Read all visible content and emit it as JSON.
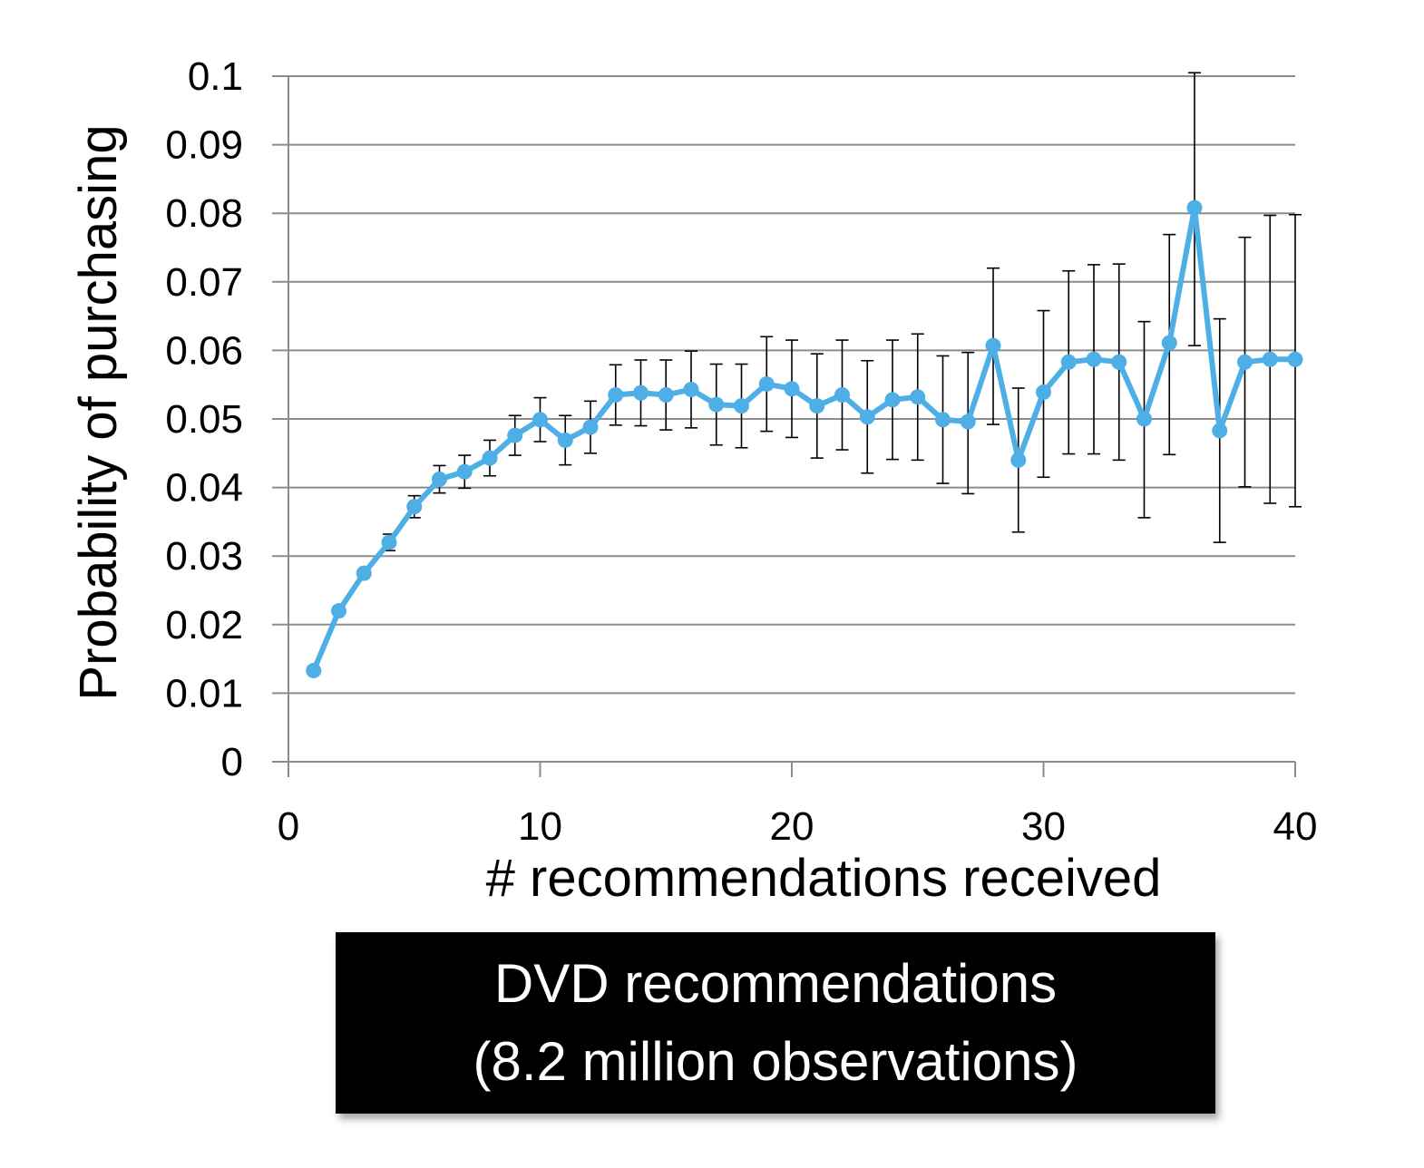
{
  "caption": {
    "line1": "DVD recommendations",
    "line2": "(8.2 million observations)"
  },
  "chart_data": {
    "type": "line",
    "title": "",
    "xlabel": "# recommendations received",
    "ylabel": "Probability of purchasing",
    "xlim": [
      0,
      40
    ],
    "ylim": [
      0,
      0.1
    ],
    "xticks": [
      0,
      10,
      20,
      30,
      40
    ],
    "xtick_labels": [
      "0",
      "10",
      "20",
      "30",
      "40"
    ],
    "yticks": [
      0,
      0.01,
      0.02,
      0.03,
      0.04,
      0.05,
      0.06,
      0.07,
      0.08,
      0.09,
      0.1
    ],
    "ytick_labels": [
      "0",
      "0.01",
      "0.02",
      "0.03",
      "0.04",
      "0.05",
      "0.06",
      "0.07",
      "0.08",
      "0.09",
      "0.1"
    ],
    "grid": "horizontal",
    "legend": "none",
    "series_color": "#4eaee6",
    "error_bar_color": "#000000",
    "series": [
      {
        "x": [
          1,
          2,
          3,
          4,
          5,
          6,
          7,
          8,
          9,
          10,
          11,
          12,
          13,
          14,
          15,
          16,
          17,
          18,
          19,
          20,
          21,
          22,
          23,
          24,
          25,
          26,
          27,
          28,
          29,
          30,
          31,
          32,
          33,
          34,
          35,
          36,
          37,
          38,
          39,
          40
        ],
        "values": [
          0.0133,
          0.022,
          0.0275,
          0.032,
          0.0372,
          0.0412,
          0.0423,
          0.0443,
          0.0476,
          0.0499,
          0.0469,
          0.0488,
          0.0535,
          0.0538,
          0.0535,
          0.0543,
          0.0521,
          0.0519,
          0.0551,
          0.0544,
          0.0519,
          0.0535,
          0.0503,
          0.0528,
          0.0532,
          0.0499,
          0.0496,
          0.0607,
          0.044,
          0.0539,
          0.0583,
          0.0587,
          0.0583,
          0.05,
          0.0611,
          0.0808,
          0.0483,
          0.0583,
          0.0587,
          0.0587
        ],
        "error_upper": [
          0.0133,
          0.022,
          0.0275,
          0.0332,
          0.0388,
          0.0432,
          0.0447,
          0.0469,
          0.0505,
          0.0531,
          0.0505,
          0.0526,
          0.0579,
          0.0586,
          0.0586,
          0.0599,
          0.058,
          0.058,
          0.062,
          0.0615,
          0.0595,
          0.0615,
          0.0585,
          0.0615,
          0.0624,
          0.0592,
          0.0597,
          0.072,
          0.0545,
          0.0658,
          0.0716,
          0.0725,
          0.0726,
          0.0642,
          0.0769,
          0.1005,
          0.0646,
          0.0765,
          0.0797,
          0.0798
        ],
        "error_lower": [
          0.0133,
          0.022,
          0.0275,
          0.0308,
          0.0356,
          0.0392,
          0.0399,
          0.0417,
          0.0447,
          0.0467,
          0.0433,
          0.045,
          0.0491,
          0.049,
          0.0484,
          0.0487,
          0.0462,
          0.0458,
          0.0482,
          0.0473,
          0.0443,
          0.0455,
          0.0421,
          0.0441,
          0.044,
          0.0406,
          0.0391,
          0.0492,
          0.0335,
          0.0415,
          0.0449,
          0.0449,
          0.044,
          0.0356,
          0.0448,
          0.0607,
          0.032,
          0.0401,
          0.0377,
          0.0372
        ]
      }
    ]
  }
}
